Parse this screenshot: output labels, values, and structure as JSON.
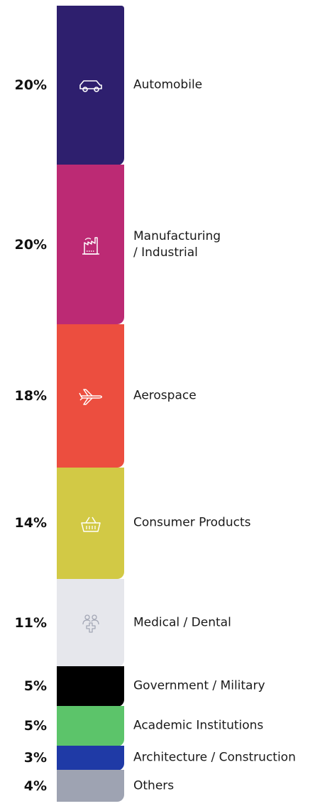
{
  "chart_data": {
    "type": "bar",
    "orientation": "stacked-vertical",
    "categories": [
      "Automobile",
      "Manufacturing\n/ Industrial",
      "Aerospace",
      "Consumer Products",
      "Medical / Dental",
      "Government / Military",
      "Academic Institutions",
      "Architecture / Construction",
      "Others"
    ],
    "values": [
      20,
      20,
      18,
      14,
      11,
      5,
      5,
      3,
      4
    ],
    "value_labels": [
      "20%",
      "20%",
      "18%",
      "14%",
      "11%",
      "5%",
      "5%",
      "3%",
      "4%"
    ],
    "unit": "%",
    "colors": [
      "#2e1f6e",
      "#bc2a74",
      "#ec4e3f",
      "#d2c945",
      "#e6e7ec",
      "#000000",
      "#5cc46a",
      "#1f3aa6",
      "#9ea3b2"
    ],
    "icons": [
      "car-icon",
      "factory-icon",
      "airplane-icon",
      "basket-icon",
      "medical-group-icon",
      "",
      "",
      "",
      ""
    ],
    "icon_colors": [
      "#ffffff",
      "#ffffff",
      "#ffffff",
      "#ffffff",
      "#a3a7b5",
      "",
      "",
      "",
      ""
    ],
    "title": "",
    "xlabel": "",
    "ylabel": ""
  }
}
